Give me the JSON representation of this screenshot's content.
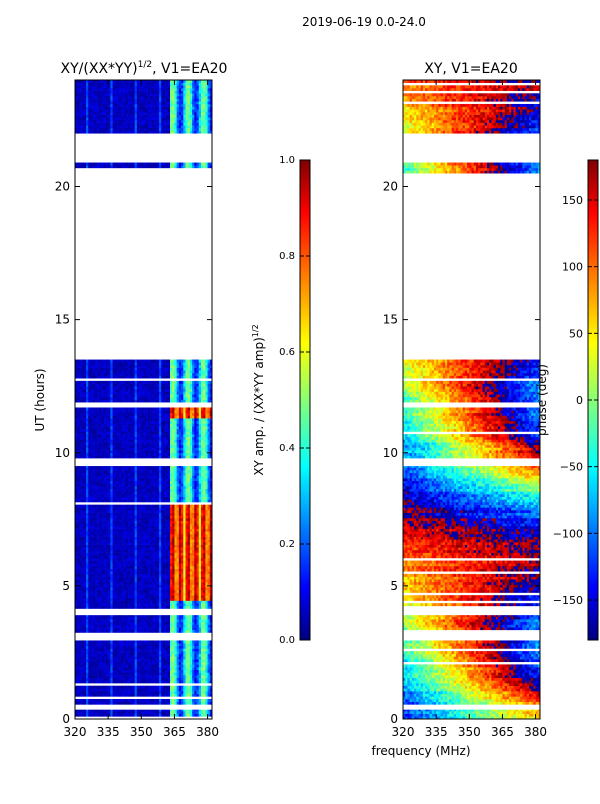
{
  "figure": {
    "suptitle": "2019-06-19 0.0-24.0",
    "shared_xlabel": "frequency (MHz)"
  },
  "colormap": {
    "name": "jet",
    "stops": [
      "#00007f",
      "#0000ff",
      "#00ffff",
      "#ffff00",
      "#ff0000",
      "#7f0000"
    ],
    "background": "#ffffff",
    "border": "#000000"
  },
  "chart_data": [
    {
      "type": "heatmap",
      "title_main": "XY/(XX*YY)",
      "title_exp": "1/2",
      "title_suffix": ", V1=EA20",
      "ylabel": "UT (hours)",
      "xlim": [
        320,
        382
      ],
      "ylim": [
        0,
        24
      ],
      "xticks": [
        320,
        335,
        350,
        365,
        380
      ],
      "yticks": [
        0,
        5,
        10,
        15,
        20
      ],
      "colorbar": {
        "label_main": "XY amp. / (XX*YY amp)",
        "label_exp": "1/2",
        "range": [
          0.0,
          1.0
        ],
        "ticks": [
          "0.0",
          "0.2",
          "0.4",
          "0.6",
          "0.8",
          "1.0"
        ]
      },
      "data_blocks_hours": [
        [
          0.0,
          0.35
        ],
        [
          0.55,
          2.95
        ],
        [
          3.25,
          3.9
        ],
        [
          4.15,
          9.5
        ],
        [
          9.8,
          11.7
        ],
        [
          11.9,
          13.5
        ],
        [
          20.5,
          20.9
        ],
        [
          22.0,
          24.0
        ]
      ],
      "bright_band_MHz": [
        362.5,
        382
      ],
      "high_amp_hours": [
        [
          4.4,
          8.0
        ],
        [
          11.2,
          11.6
        ]
      ]
    },
    {
      "type": "heatmap",
      "title": "XY, V1=EA20",
      "ylabel": "",
      "xlim": [
        320,
        382
      ],
      "ylim": [
        0,
        24
      ],
      "xticks": [
        320,
        335,
        350,
        365,
        380
      ],
      "yticks": [
        0,
        5,
        10,
        15,
        20
      ],
      "colorbar": {
        "label": "phase (deg)",
        "range": [
          -180,
          180
        ],
        "ticks": [
          "150",
          "100",
          "50",
          "0",
          "−50",
          "−100",
          "−150"
        ],
        "tick_values": [
          150,
          100,
          50,
          0,
          -50,
          -100,
          -150
        ]
      },
      "data_blocks_hours": [
        [
          0.0,
          0.35
        ],
        [
          0.55,
          2.95
        ],
        [
          3.25,
          3.9
        ],
        [
          4.15,
          9.5
        ],
        [
          9.8,
          11.7
        ],
        [
          11.9,
          13.5
        ],
        [
          20.5,
          20.9
        ],
        [
          22.0,
          24.0
        ]
      ]
    }
  ]
}
